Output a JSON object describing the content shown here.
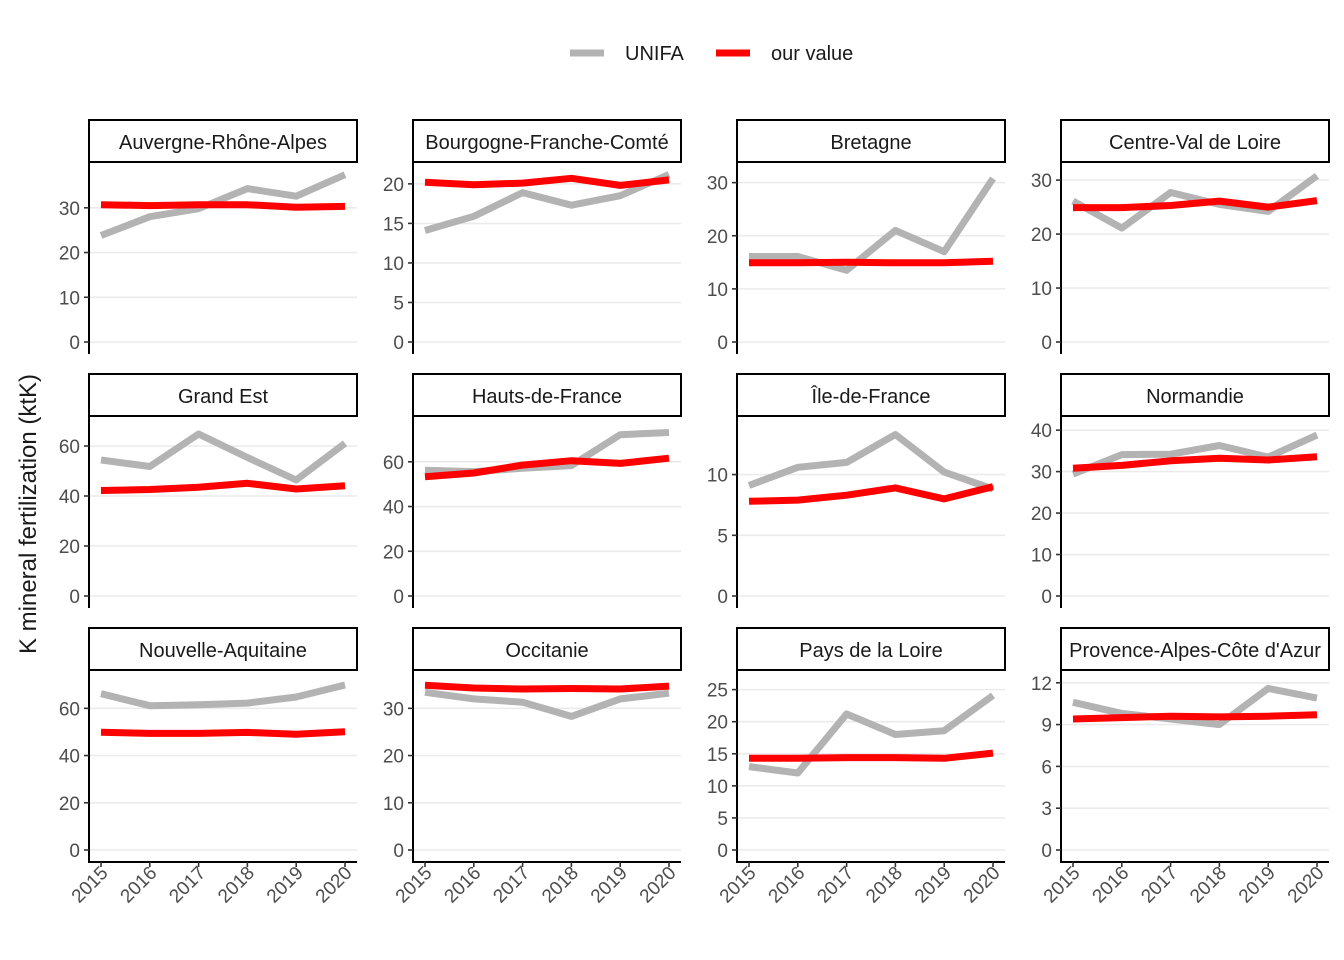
{
  "legend": {
    "items": [
      {
        "label": "UNIFA",
        "color": "#b3b3b3"
      },
      {
        "label": "our value",
        "color": "#ff0000"
      }
    ],
    "position": "top"
  },
  "y_axis_label": "K mineral fertilization (ktK)",
  "chart_data": {
    "type": "line",
    "facet": "wrap",
    "ylabel": "K mineral fertilization (ktK)",
    "x": [
      "2015",
      "2016",
      "2017",
      "2018",
      "2019",
      "2020"
    ],
    "series_names": [
      "UNIFA",
      "our value"
    ],
    "series_colors": {
      "UNIFA": "#b3b3b3",
      "our value": "#ff0000"
    },
    "grid": true,
    "panels": [
      {
        "title": "Auvergne-Rhône-Alpes",
        "ylim": [
          0,
          38
        ],
        "yticks": [
          0,
          10,
          20,
          30
        ],
        "series": [
          {
            "name": "UNIFA",
            "values": [
              23.8,
              28,
              29.8,
              34.3,
              32.6,
              37.4
            ]
          },
          {
            "name": "our value",
            "values": [
              30.7,
              30.5,
              30.7,
              30.7,
              30.1,
              30.3
            ]
          }
        ]
      },
      {
        "title": "Bourgogne-Franche-Comté",
        "ylim": [
          0,
          21.5
        ],
        "yticks": [
          0,
          5,
          10,
          15,
          20
        ],
        "series": [
          {
            "name": "UNIFA",
            "values": [
              14.1,
              15.9,
              18.9,
              17.3,
              18.5,
              21.2
            ]
          },
          {
            "name": "our value",
            "values": [
              20.2,
              19.9,
              20.1,
              20.7,
              19.8,
              20.5
            ]
          }
        ]
      },
      {
        "title": "Bretagne",
        "ylim": [
          0,
          32
        ],
        "yticks": [
          0,
          10,
          20,
          30
        ],
        "series": [
          {
            "name": "UNIFA",
            "values": [
              16.1,
              16.1,
              13.5,
              21.0,
              17.0,
              30.8
            ]
          },
          {
            "name": "our value",
            "values": [
              14.9,
              14.9,
              15.0,
              14.9,
              14.9,
              15.2
            ]
          }
        ]
      },
      {
        "title": "Centre-Val de Loire",
        "ylim": [
          0,
          31.5
        ],
        "yticks": [
          0,
          10,
          20,
          30
        ],
        "series": [
          {
            "name": "UNIFA",
            "values": [
              26.1,
              21.1,
              27.7,
              25.5,
              24.2,
              30.8
            ]
          },
          {
            "name": "our value",
            "values": [
              24.9,
              24.9,
              25.3,
              26.1,
              25.0,
              26.2
            ]
          }
        ]
      },
      {
        "title": "Grand Est",
        "ylim": [
          0,
          68
        ],
        "yticks": [
          0,
          20,
          40,
          60
        ],
        "series": [
          {
            "name": "UNIFA",
            "values": [
              54.4,
              51.8,
              64.8,
              55.4,
              46.4,
              61.1
            ]
          },
          {
            "name": "our value",
            "values": [
              42.2,
              42.6,
              43.5,
              45.1,
              42.8,
              44.1
            ]
          }
        ]
      },
      {
        "title": "Hauts-de-France",
        "ylim": [
          0,
          76
        ],
        "yticks": [
          0,
          20,
          40,
          60
        ],
        "series": [
          {
            "name": "UNIFA",
            "values": [
              56.2,
              55.6,
              57.1,
              58.3,
              72.1,
              73.1
            ]
          },
          {
            "name": "our value",
            "values": [
              53.3,
              55.0,
              58.5,
              60.5,
              59.3,
              61.6
            ]
          }
        ]
      },
      {
        "title": "Île-de-France",
        "ylim": [
          0,
          14
        ],
        "yticks": [
          0,
          5,
          10
        ],
        "series": [
          {
            "name": "UNIFA",
            "values": [
              9.1,
              10.6,
              11.0,
              13.3,
              10.2,
              8.8
            ]
          },
          {
            "name": "our value",
            "values": [
              7.8,
              7.9,
              8.3,
              8.9,
              8.0,
              9.0
            ]
          }
        ]
      },
      {
        "title": "Normandie",
        "ylim": [
          0,
          41
        ],
        "yticks": [
          0,
          10,
          20,
          30,
          40
        ],
        "series": [
          {
            "name": "UNIFA",
            "values": [
              29.4,
              34.1,
              34.2,
              36.3,
              33.5,
              38.8
            ]
          },
          {
            "name": "our value",
            "values": [
              30.8,
              31.5,
              32.6,
              33.2,
              32.8,
              33.6
            ]
          }
        ]
      },
      {
        "title": "Nouvelle-Aquitaine",
        "ylim": [
          0,
          72
        ],
        "yticks": [
          0,
          20,
          40,
          60
        ],
        "series": [
          {
            "name": "UNIFA",
            "values": [
              66.2,
              61.1,
              61.5,
              62.2,
              64.8,
              69.9
            ]
          },
          {
            "name": "our value",
            "values": [
              49.9,
              49.4,
              49.4,
              49.8,
              49.0,
              50.1
            ]
          }
        ]
      },
      {
        "title": "Occitanie",
        "ylim": [
          0,
          36
        ],
        "yticks": [
          0,
          10,
          20,
          30
        ],
        "series": [
          {
            "name": "UNIFA",
            "values": [
              33.4,
              32.0,
              31.3,
              28.3,
              32.0,
              33.2
            ]
          },
          {
            "name": "our value",
            "values": [
              34.9,
              34.3,
              34.1,
              34.2,
              34.1,
              34.7
            ]
          }
        ]
      },
      {
        "title": "Pays de la Loire",
        "ylim": [
          0,
          26.5
        ],
        "yticks": [
          0,
          5,
          10,
          15,
          20,
          25
        ],
        "series": [
          {
            "name": "UNIFA",
            "values": [
              13.0,
              12.0,
              21.2,
              18.0,
              18.6,
              24.1
            ]
          },
          {
            "name": "our value",
            "values": [
              14.3,
              14.3,
              14.4,
              14.4,
              14.3,
              15.1
            ]
          }
        ]
      },
      {
        "title": "Provence-Alpes-Côte d'Azur",
        "ylim": [
          0,
          12.2
        ],
        "yticks": [
          0,
          3,
          6,
          9,
          12
        ],
        "series": [
          {
            "name": "UNIFA",
            "values": [
              10.6,
              9.8,
              9.4,
              9.0,
              11.6,
              10.9
            ]
          },
          {
            "name": "our value",
            "values": [
              9.4,
              9.5,
              9.6,
              9.55,
              9.6,
              9.7
            ]
          }
        ]
      }
    ]
  }
}
